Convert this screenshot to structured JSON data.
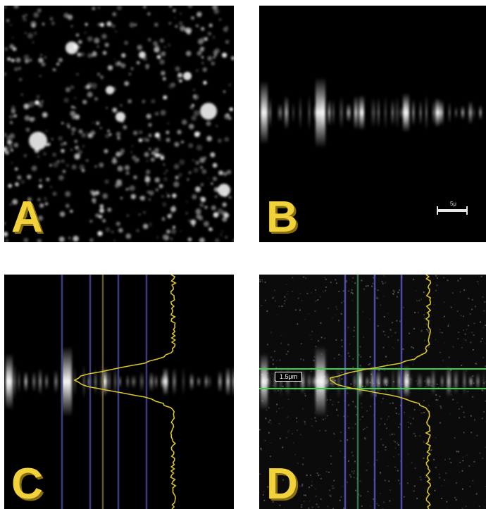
{
  "panels": {
    "a": {
      "letter": "A"
    },
    "b": {
      "letter": "B",
      "scale_bar_label": "5μ"
    },
    "c": {
      "letter": "C"
    },
    "d": {
      "letter": "D",
      "measurement_label": "1.5μm"
    }
  },
  "colors": {
    "label_yellow": "#f2d23a",
    "profile_yellow": "#d8c52a",
    "guide_blue": "#5a5ad0",
    "guide_green": "#3ad04a"
  }
}
